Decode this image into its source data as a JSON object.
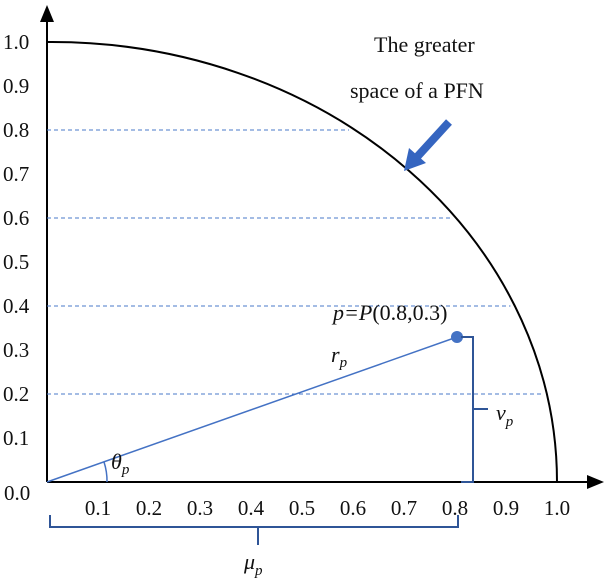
{
  "annotation": {
    "line1": "The greater",
    "line2": "space of a PFN"
  },
  "point": {
    "label_prefix": "p=",
    "label_func": "P",
    "label_coords": "(0.8,0.3)",
    "x": 0.8,
    "y": 0.3
  },
  "symbols": {
    "radius": {
      "base": "r",
      "sub": "p"
    },
    "angle": {
      "base": "θ",
      "sub": "p"
    },
    "mu": {
      "base": "μ",
      "sub": "p"
    },
    "nu": {
      "base": "ν",
      "sub": "p"
    }
  },
  "chart_data": {
    "type": "diagram",
    "y_ticks": [
      "1.0",
      "0.9",
      "0.8",
      "0.7",
      "0.6",
      "0.5",
      "0.4",
      "0.3",
      "0.2",
      "0.1",
      "0.0"
    ],
    "x_ticks": [
      "0.1",
      "0.2",
      "0.3",
      "0.4",
      "0.5",
      "0.6",
      "0.7",
      "0.8",
      "0.9",
      "1.0"
    ],
    "dashed_levels": [
      0.8,
      0.6,
      0.4,
      0.2
    ],
    "arc_radius": 1.0,
    "colors": {
      "line": "#4472c4",
      "bracket": "#2f5597",
      "dashed": "#4a7ac9",
      "arrow": "#3565c0",
      "axis": "#000000"
    }
  }
}
